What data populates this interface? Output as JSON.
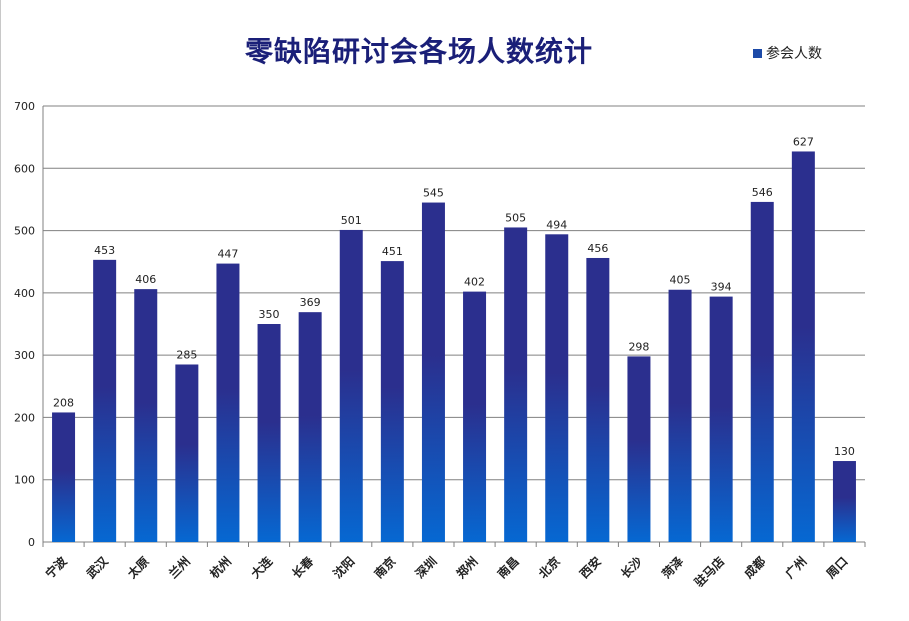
{
  "colors": {
    "bar_top": "#2b2f8e",
    "bar_bottom": "#0668d2",
    "grid": "#808080",
    "axis": "#808080",
    "title": "#1a1f78",
    "text": "#222222",
    "legend_swatch": "#1c4aa8"
  },
  "chart_data": {
    "type": "bar",
    "title": "零缺陷研讨会各场人数统计",
    "xlabel": "",
    "ylabel": "",
    "ylim": [
      0,
      700
    ],
    "yticks": [
      0,
      100,
      200,
      300,
      400,
      500,
      600,
      700
    ],
    "grid": true,
    "legend_position": "top-right",
    "categories": [
      "宁波",
      "武汉",
      "太原",
      "兰州",
      "杭州",
      "大连",
      "长春",
      "沈阳",
      "南京",
      "深圳",
      "郑州",
      "南昌",
      "北京",
      "西安",
      "长沙",
      "菏泽",
      "驻马店",
      "成都",
      "广州",
      "周口"
    ],
    "series": [
      {
        "name": "参会人数",
        "values": [
          208,
          453,
          406,
          285,
          447,
          350,
          369,
          501,
          451,
          545,
          402,
          505,
          494,
          456,
          298,
          405,
          394,
          546,
          627,
          130
        ]
      }
    ],
    "data_labels": true
  }
}
